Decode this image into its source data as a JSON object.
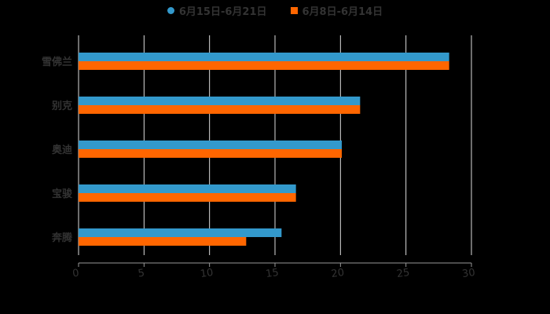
{
  "chart_data": {
    "type": "bar",
    "orientation": "horizontal",
    "title": "",
    "xlabel": "",
    "ylabel": "",
    "categories": [
      "雪佛兰",
      "别克",
      "奥迪",
      "宝骏",
      "奔腾"
    ],
    "series": [
      {
        "name": "6月15日-6月21日",
        "color": "#3399cc",
        "values": [
          28.3,
          21.5,
          20.1,
          16.6,
          15.5
        ]
      },
      {
        "name": "6月8日-6月14日",
        "color": "#ff6600",
        "values": [
          28.3,
          21.5,
          20.1,
          16.6,
          12.8
        ]
      }
    ],
    "xlim": [
      0,
      30
    ],
    "xticks": [
      "0",
      "5",
      "10",
      "15",
      "20",
      "25",
      "30"
    ],
    "grid": true,
    "legend_position": "top"
  },
  "legend": {
    "items": [
      {
        "label": "6月15日-6月21日",
        "color": "#3399cc"
      },
      {
        "label": "6月8日-6月14日",
        "color": "#ff6600"
      }
    ]
  }
}
